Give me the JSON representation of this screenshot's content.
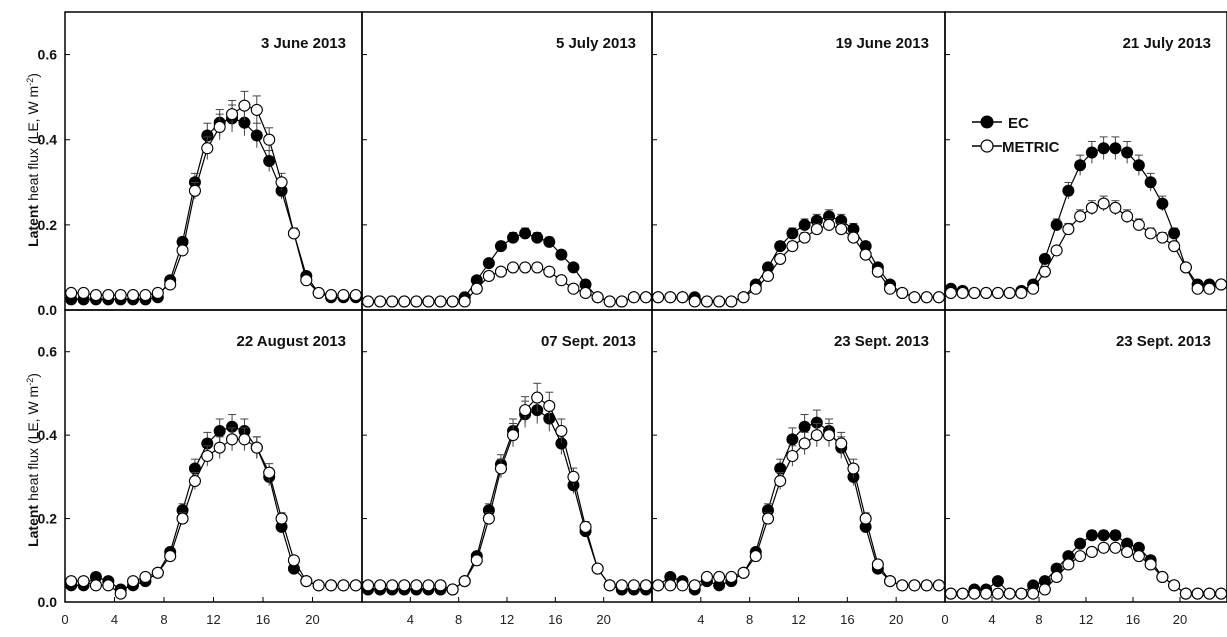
{
  "figure": {
    "ylabel_bold": "Latent",
    "ylabel_rest": "heat flux (LE, W m",
    "ylabel_sup": "-2",
    "ylabel_close": ")"
  },
  "legend": {
    "ec": "EC",
    "metric": "METRIC"
  },
  "chart_data": [
    {
      "type": "line",
      "title": "3 June 2013",
      "xlim": [
        0,
        24
      ],
      "ylim": [
        0,
        0.7
      ],
      "xticks": [
        "0",
        "4",
        "8",
        "12",
        "16",
        "20"
      ],
      "yticks": [
        "0.0",
        "0.2",
        "0.4",
        "0.6"
      ],
      "x": [
        0.5,
        1.5,
        2.5,
        3.5,
        4.5,
        5.5,
        6.5,
        7.5,
        8.5,
        9.5,
        10.5,
        11.5,
        12.5,
        13.5,
        14.5,
        15.5,
        16.5,
        17.5,
        18.5,
        19.5,
        20.5,
        21.5,
        22.5,
        23.5
      ],
      "series": [
        {
          "name": "EC",
          "marker": "filled",
          "values": [
            0.025,
            0.025,
            0.025,
            0.025,
            0.025,
            0.025,
            0.025,
            0.03,
            0.07,
            0.16,
            0.3,
            0.41,
            0.44,
            0.45,
            0.44,
            0.41,
            0.35,
            0.28,
            0.18,
            0.08,
            0.04,
            0.03,
            0.03,
            0.03
          ]
        },
        {
          "name": "METRIC",
          "marker": "open",
          "values": [
            0.04,
            0.04,
            0.035,
            0.035,
            0.035,
            0.035,
            0.035,
            0.04,
            0.06,
            0.14,
            0.28,
            0.38,
            0.43,
            0.46,
            0.48,
            0.47,
            0.4,
            0.3,
            0.18,
            0.07,
            0.04,
            0.035,
            0.035,
            0.035
          ]
        }
      ]
    },
    {
      "type": "line",
      "title": "5 July 2013",
      "xlim": [
        0,
        24
      ],
      "ylim": [
        0,
        0.7
      ],
      "xticks": [
        "4",
        "8",
        "12",
        "16",
        "20"
      ],
      "yticks": [],
      "x": [
        0.5,
        1.5,
        2.5,
        3.5,
        4.5,
        5.5,
        6.5,
        7.5,
        8.5,
        9.5,
        10.5,
        11.5,
        12.5,
        13.5,
        14.5,
        15.5,
        16.5,
        17.5,
        18.5,
        19.5,
        20.5,
        21.5,
        22.5,
        23.5
      ],
      "series": [
        {
          "name": "EC",
          "marker": "filled",
          "values": [
            0.02,
            0.02,
            0.02,
            0.02,
            0.02,
            0.02,
            0.02,
            0.02,
            0.03,
            0.07,
            0.11,
            0.15,
            0.17,
            0.18,
            0.17,
            0.16,
            0.13,
            0.1,
            0.06,
            0.03,
            0.02,
            0.02,
            0.03,
            0.03
          ]
        },
        {
          "name": "METRIC",
          "marker": "open",
          "values": [
            0.02,
            0.02,
            0.02,
            0.02,
            0.02,
            0.02,
            0.02,
            0.02,
            0.02,
            0.05,
            0.08,
            0.09,
            0.1,
            0.1,
            0.1,
            0.09,
            0.07,
            0.05,
            0.04,
            0.03,
            0.02,
            0.02,
            0.03,
            0.03
          ]
        }
      ]
    },
    {
      "type": "line",
      "title": "19 June 2013",
      "xlim": [
        0,
        24
      ],
      "ylim": [
        0,
        0.7
      ],
      "xticks": [
        "4",
        "8",
        "12",
        "16",
        "20"
      ],
      "yticks": [],
      "x": [
        0.5,
        1.5,
        2.5,
        3.5,
        4.5,
        5.5,
        6.5,
        7.5,
        8.5,
        9.5,
        10.5,
        11.5,
        12.5,
        13.5,
        14.5,
        15.5,
        16.5,
        17.5,
        18.5,
        19.5,
        20.5,
        21.5,
        22.5,
        23.5
      ],
      "series": [
        {
          "name": "EC",
          "marker": "filled",
          "values": [
            0.03,
            0.03,
            0.03,
            0.03,
            0.02,
            0.02,
            0.02,
            0.03,
            0.06,
            0.1,
            0.15,
            0.18,
            0.2,
            0.21,
            0.22,
            0.21,
            0.19,
            0.15,
            0.1,
            0.06,
            0.04,
            0.03,
            0.03,
            0.03
          ]
        },
        {
          "name": "METRIC",
          "marker": "open",
          "values": [
            0.03,
            0.03,
            0.03,
            0.02,
            0.02,
            0.02,
            0.02,
            0.03,
            0.05,
            0.08,
            0.12,
            0.15,
            0.17,
            0.19,
            0.2,
            0.19,
            0.17,
            0.13,
            0.09,
            0.05,
            0.04,
            0.03,
            0.03,
            0.03
          ]
        }
      ]
    },
    {
      "type": "line",
      "title": "21 July 2013",
      "xlim": [
        0,
        24
      ],
      "ylim": [
        0,
        0.7
      ],
      "xticks": [],
      "yticks": [],
      "x": [
        0.5,
        1.5,
        2.5,
        3.5,
        4.5,
        5.5,
        6.5,
        7.5,
        8.5,
        9.5,
        10.5,
        11.5,
        12.5,
        13.5,
        14.5,
        15.5,
        16.5,
        17.5,
        18.5,
        19.5,
        20.5,
        21.5,
        22.5,
        23.5
      ],
      "series": [
        {
          "name": "EC",
          "marker": "filled",
          "values": [
            0.05,
            0.045,
            0.04,
            0.04,
            0.04,
            0.04,
            0.045,
            0.06,
            0.12,
            0.2,
            0.28,
            0.34,
            0.37,
            0.38,
            0.38,
            0.37,
            0.34,
            0.3,
            0.25,
            0.18,
            0.1,
            0.06,
            0.06,
            0.06
          ]
        },
        {
          "name": "METRIC",
          "marker": "open",
          "values": [
            0.04,
            0.04,
            0.04,
            0.04,
            0.04,
            0.04,
            0.04,
            0.05,
            0.09,
            0.14,
            0.19,
            0.22,
            0.24,
            0.25,
            0.24,
            0.22,
            0.2,
            0.18,
            0.17,
            0.15,
            0.1,
            0.05,
            0.05,
            0.06
          ]
        }
      ]
    },
    {
      "type": "line",
      "title": "22 August 2013",
      "xlim": [
        0,
        24
      ],
      "ylim": [
        0,
        0.7
      ],
      "xticks": [
        "0",
        "4",
        "8",
        "12",
        "16",
        "20"
      ],
      "yticks": [
        "0.0",
        "0.2",
        "0.4",
        "0.6"
      ],
      "x": [
        0.5,
        1.5,
        2.5,
        3.5,
        4.5,
        5.5,
        6.5,
        7.5,
        8.5,
        9.5,
        10.5,
        11.5,
        12.5,
        13.5,
        14.5,
        15.5,
        16.5,
        17.5,
        18.5,
        19.5,
        20.5,
        21.5,
        22.5,
        23.5
      ],
      "series": [
        {
          "name": "EC",
          "marker": "filled",
          "values": [
            0.04,
            0.04,
            0.06,
            0.05,
            0.03,
            0.04,
            0.05,
            0.07,
            0.12,
            0.22,
            0.32,
            0.38,
            0.41,
            0.42,
            0.41,
            0.37,
            0.3,
            0.18,
            0.08,
            0.05,
            0.04,
            0.04,
            0.04,
            0.04
          ]
        },
        {
          "name": "METRIC",
          "marker": "open",
          "values": [
            0.05,
            0.05,
            0.04,
            0.04,
            0.02,
            0.05,
            0.06,
            0.07,
            0.11,
            0.2,
            0.29,
            0.35,
            0.37,
            0.39,
            0.39,
            0.37,
            0.31,
            0.2,
            0.1,
            0.05,
            0.04,
            0.04,
            0.04,
            0.04
          ]
        }
      ]
    },
    {
      "type": "line",
      "title": "07 Sept. 2013",
      "xlim": [
        0,
        24
      ],
      "ylim": [
        0,
        0.7
      ],
      "xticks": [
        "4",
        "8",
        "12",
        "16",
        "20"
      ],
      "yticks": [],
      "x": [
        0.5,
        1.5,
        2.5,
        3.5,
        4.5,
        5.5,
        6.5,
        7.5,
        8.5,
        9.5,
        10.5,
        11.5,
        12.5,
        13.5,
        14.5,
        15.5,
        16.5,
        17.5,
        18.5,
        19.5,
        20.5,
        21.5,
        22.5,
        23.5
      ],
      "series": [
        {
          "name": "EC",
          "marker": "filled",
          "values": [
            0.03,
            0.03,
            0.03,
            0.03,
            0.03,
            0.03,
            0.03,
            0.03,
            0.05,
            0.11,
            0.22,
            0.33,
            0.41,
            0.45,
            0.46,
            0.44,
            0.38,
            0.28,
            0.17,
            0.08,
            0.04,
            0.03,
            0.03,
            0.03
          ]
        },
        {
          "name": "METRIC",
          "marker": "open",
          "values": [
            0.04,
            0.04,
            0.04,
            0.04,
            0.04,
            0.04,
            0.04,
            0.03,
            0.05,
            0.1,
            0.2,
            0.32,
            0.4,
            0.46,
            0.49,
            0.47,
            0.41,
            0.3,
            0.18,
            0.08,
            0.04,
            0.04,
            0.04,
            0.04
          ]
        }
      ]
    },
    {
      "type": "line",
      "title": "23 Sept. 2013",
      "xlim": [
        0,
        24
      ],
      "ylim": [
        0,
        0.7
      ],
      "xticks": [
        "4",
        "8",
        "12",
        "16",
        "20"
      ],
      "yticks": [],
      "x": [
        0.5,
        1.5,
        2.5,
        3.5,
        4.5,
        5.5,
        6.5,
        7.5,
        8.5,
        9.5,
        10.5,
        11.5,
        12.5,
        13.5,
        14.5,
        15.5,
        16.5,
        17.5,
        18.5,
        19.5,
        20.5,
        21.5,
        22.5,
        23.5
      ],
      "series": [
        {
          "name": "EC",
          "marker": "filled",
          "values": [
            0.04,
            0.06,
            0.05,
            0.03,
            0.05,
            0.04,
            0.05,
            0.07,
            0.12,
            0.22,
            0.32,
            0.39,
            0.42,
            0.43,
            0.41,
            0.37,
            0.3,
            0.18,
            0.08,
            0.05,
            0.04,
            0.04,
            0.04,
            0.04
          ]
        },
        {
          "name": "METRIC",
          "marker": "open",
          "values": [
            0.04,
            0.04,
            0.04,
            0.04,
            0.06,
            0.06,
            0.06,
            0.07,
            0.11,
            0.2,
            0.29,
            0.35,
            0.38,
            0.4,
            0.4,
            0.38,
            0.32,
            0.2,
            0.09,
            0.05,
            0.04,
            0.04,
            0.04,
            0.04
          ]
        }
      ]
    },
    {
      "type": "line",
      "title": "23 Sept. 2013",
      "xlim": [
        0,
        24
      ],
      "ylim": [
        0,
        0.7
      ],
      "xticks": [
        "0",
        "4",
        "8",
        "12",
        "16",
        "20"
      ],
      "yticks": [],
      "x": [
        0.5,
        1.5,
        2.5,
        3.5,
        4.5,
        5.5,
        6.5,
        7.5,
        8.5,
        9.5,
        10.5,
        11.5,
        12.5,
        13.5,
        14.5,
        15.5,
        16.5,
        17.5,
        18.5,
        19.5,
        20.5,
        21.5,
        22.5,
        23.5
      ],
      "series": [
        {
          "name": "EC",
          "marker": "filled",
          "values": [
            0.02,
            0.02,
            0.03,
            0.03,
            0.05,
            0.02,
            0.02,
            0.04,
            0.05,
            0.08,
            0.11,
            0.14,
            0.16,
            0.16,
            0.16,
            0.14,
            0.13,
            0.1,
            0.06,
            0.04,
            0.02,
            0.02,
            0.02,
            0.02
          ]
        },
        {
          "name": "METRIC",
          "marker": "open",
          "values": [
            0.02,
            0.02,
            0.02,
            0.02,
            0.02,
            0.02,
            0.02,
            0.02,
            0.03,
            0.06,
            0.09,
            0.11,
            0.12,
            0.13,
            0.13,
            0.12,
            0.11,
            0.09,
            0.06,
            0.04,
            0.02,
            0.02,
            0.02,
            0.02
          ]
        }
      ]
    }
  ]
}
